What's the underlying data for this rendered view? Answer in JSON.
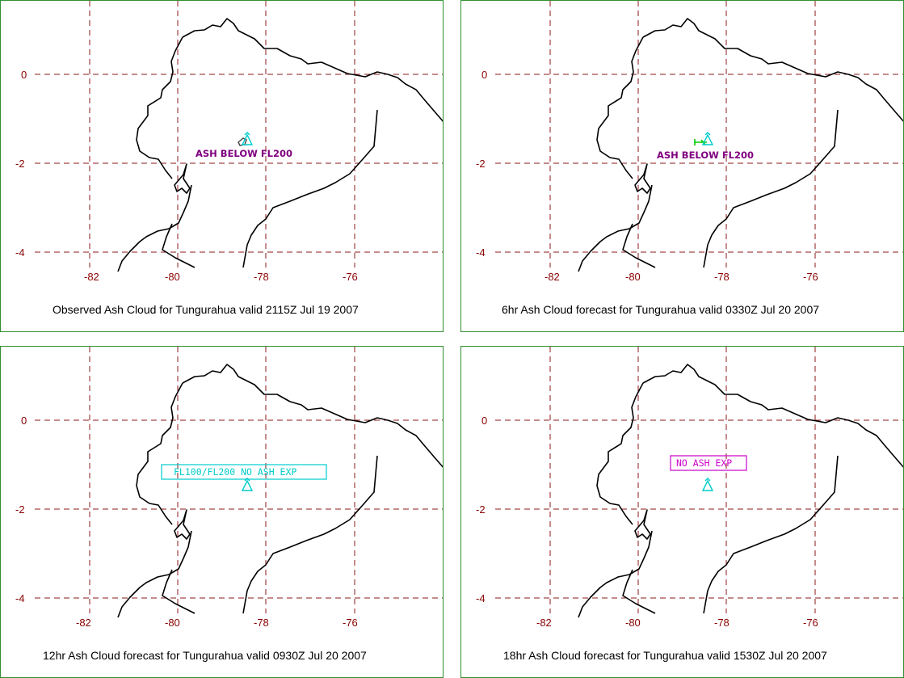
{
  "map": {
    "lon_ticks": [
      "-82",
      "-80",
      "-78",
      "-76"
    ],
    "lat_ticks": [
      "0",
      "-2",
      "-4"
    ],
    "volcano_lat": -1.47,
    "volcano_lon": -78.44,
    "colors": {
      "grid": "#8b1a1a",
      "tick_text": "#8b0000",
      "coast": "#000000",
      "panel_border": "#2f8f2f",
      "volcano_icon": "#00cccc",
      "ash_label": "#800080"
    }
  },
  "panels": [
    {
      "caption": "Observed Ash Cloud for Tungurahua valid 2115Z Jul 19 2007",
      "label": "ASH BELOW FL200",
      "label_style": "plain",
      "label_color": "#800080",
      "ash_area_color": "#444444"
    },
    {
      "caption": "6hr Ash Cloud forecast for Tungurahua valid 0330Z Jul 20 2007",
      "label": "ASH BELOW FL200",
      "label_style": "plain",
      "label_color": "#800080",
      "ash_area_color": "#00cc00"
    },
    {
      "caption": "12hr Ash Cloud forecast for Tungurahua valid 0930Z Jul 20 2007",
      "label": "FL100/FL200 NO ASH EXP",
      "label_style": "boxed",
      "label_color": "#00cccc"
    },
    {
      "caption": "18hr Ash Cloud forecast for Tungurahua valid 1530Z Jul 20 2007",
      "label": "NO ASH EXP",
      "label_style": "boxed",
      "label_color": "#cc00cc"
    }
  ]
}
